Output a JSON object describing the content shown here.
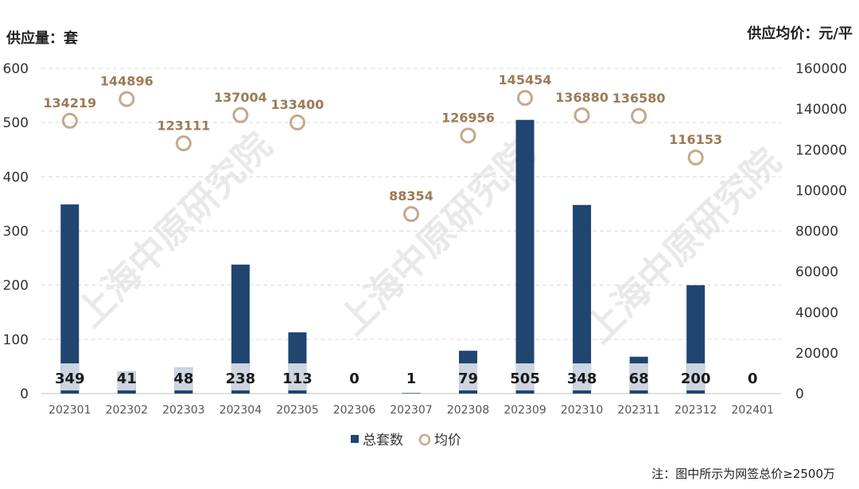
{
  "chart_data": {
    "type": "bar",
    "categories": [
      "202301",
      "202302",
      "202303",
      "202304",
      "202305",
      "202306",
      "202307",
      "202308",
      "202309",
      "202310",
      "202311",
      "202312",
      "202401"
    ],
    "series": [
      {
        "name": "总套数",
        "type": "bar",
        "axis": "left",
        "values": [
          349,
          41,
          48,
          238,
          113,
          0,
          1,
          79,
          505,
          348,
          68,
          200,
          0
        ],
        "color": "#1f4570"
      },
      {
        "name": "均价",
        "type": "scatter",
        "axis": "right",
        "values": [
          134219,
          144896,
          123111,
          137004,
          133400,
          null,
          88354,
          126956,
          145454,
          136880,
          136580,
          116153,
          null
        ],
        "color": "#c4a98b"
      }
    ],
    "ylabel": "供应量：套",
    "y2label": "供应均价：元/平",
    "ylim": [
      0,
      600
    ],
    "y2lim": [
      0,
      160000
    ],
    "yticks": [
      "600",
      "500",
      "400",
      "300",
      "200",
      "100",
      "0"
    ],
    "y2ticks": [
      "160000",
      "140000",
      "120000",
      "100000",
      "80000",
      "60000",
      "40000",
      "20000",
      "0"
    ],
    "bar_label_band_color": "#ccd5e0",
    "grid": true,
    "legend": "bottom-center",
    "note": "注：图中所示为网签总价≥2500万",
    "watermark": "上海中原研究院"
  }
}
